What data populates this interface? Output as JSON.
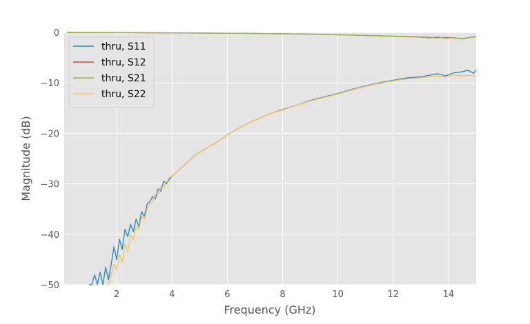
{
  "chart_data": {
    "type": "line",
    "title": "",
    "xlabel": "Frequency (GHz)",
    "ylabel": "Magnitude (dB)",
    "xlim": [
      0.1,
      15.0
    ],
    "ylim": [
      -50,
      0
    ],
    "xticks": [
      2,
      4,
      6,
      8,
      10,
      12,
      14
    ],
    "yticks": [
      0,
      -10,
      -20,
      -30,
      -40,
      -50
    ],
    "xtick_labels": [
      "2",
      "4",
      "6",
      "8",
      "10",
      "12",
      "14"
    ],
    "ytick_labels": [
      "0",
      "−10",
      "−20",
      "−30",
      "−40",
      "−50"
    ],
    "grid": true,
    "legend_position": "upper-left",
    "background": "#e5e5e5",
    "series": [
      {
        "name": "thru, S11",
        "color": "#348abd",
        "x": [
          1.0,
          1.1,
          1.2,
          1.3,
          1.4,
          1.5,
          1.6,
          1.7,
          1.8,
          1.9,
          2.0,
          2.1,
          2.2,
          2.3,
          2.4,
          2.5,
          2.6,
          2.7,
          2.8,
          2.9,
          3.0,
          3.1,
          3.2,
          3.3,
          3.4,
          3.5,
          3.6,
          3.7,
          3.8,
          3.9,
          4.0,
          4.2,
          4.4,
          4.6,
          4.8,
          5.0,
          5.3,
          5.6,
          6.0,
          6.4,
          6.8,
          7.2,
          7.6,
          8.0,
          8.5,
          9.0,
          9.5,
          10.0,
          10.5,
          11.0,
          11.5,
          12.0,
          12.5,
          13.0,
          13.3,
          13.6,
          13.9,
          14.2,
          14.5,
          14.7,
          14.9,
          15.0
        ],
        "values": [
          -50.0,
          -51.0,
          -48.0,
          -52.0,
          -47.5,
          -50.0,
          -46.5,
          -49.0,
          -46.0,
          -42.5,
          -45.0,
          -41.0,
          -43.0,
          -39.0,
          -40.5,
          -38.0,
          -39.5,
          -37.0,
          -38.5,
          -35.5,
          -36.5,
          -34.0,
          -33.5,
          -32.5,
          -33.0,
          -31.0,
          -31.5,
          -29.5,
          -30.0,
          -29.0,
          -28.5,
          -27.5,
          -26.5,
          -25.5,
          -24.5,
          -23.8,
          -22.8,
          -21.8,
          -20.3,
          -19.0,
          -17.9,
          -16.9,
          -16.0,
          -15.3,
          -14.4,
          -13.5,
          -12.8,
          -12.1,
          -11.3,
          -10.6,
          -10.0,
          -9.5,
          -9.0,
          -8.8,
          -8.5,
          -8.2,
          -8.6,
          -8.0,
          -7.8,
          -7.5,
          -8.1,
          -7.5
        ]
      },
      {
        "name": "thru, S12",
        "color": "#e24a33",
        "x": [
          0.2,
          1,
          2,
          3,
          4,
          5,
          6,
          7,
          8,
          9,
          10,
          11,
          12,
          13,
          13.5,
          14,
          14.5,
          15
        ],
        "values": [
          0.0,
          -0.01,
          -0.03,
          -0.06,
          -0.09,
          -0.12,
          -0.16,
          -0.21,
          -0.27,
          -0.36,
          -0.46,
          -0.6,
          -0.75,
          -0.9,
          -1.05,
          -1.0,
          -1.25,
          -0.8
        ]
      },
      {
        "name": "thru, S21",
        "color": "#8eba42",
        "x": [
          0.2,
          1,
          2,
          3,
          4,
          5,
          6,
          7,
          8,
          9,
          10,
          11,
          12,
          13,
          13.3,
          13.6,
          13.9,
          14.2,
          14.5,
          14.8,
          15
        ],
        "values": [
          0.0,
          -0.01,
          -0.03,
          -0.06,
          -0.09,
          -0.12,
          -0.16,
          -0.21,
          -0.27,
          -0.36,
          -0.47,
          -0.6,
          -0.76,
          -0.95,
          -1.1,
          -0.9,
          -1.15,
          -1.05,
          -1.3,
          -1.0,
          -0.9
        ]
      },
      {
        "name": "thru, S22",
        "color": "#fbc15e",
        "x": [
          1.7,
          1.8,
          1.9,
          2.0,
          2.1,
          2.2,
          2.3,
          2.4,
          2.5,
          2.6,
          2.7,
          2.8,
          2.9,
          3.0,
          3.1,
          3.2,
          3.3,
          3.4,
          3.5,
          3.6,
          3.7,
          3.8,
          3.9,
          4.0,
          4.2,
          4.4,
          4.6,
          4.8,
          5.0,
          5.3,
          5.6,
          6.0,
          6.4,
          6.8,
          7.2,
          7.6,
          8.0,
          8.5,
          9.0,
          9.5,
          10.0,
          10.5,
          11.0,
          11.5,
          12.0,
          12.5,
          13.0,
          13.3,
          13.6,
          13.9,
          14.2,
          14.5,
          14.8,
          15.0
        ],
        "values": [
          -50.0,
          -48.0,
          -46.0,
          -47.0,
          -44.0,
          -45.5,
          -42.0,
          -43.5,
          -40.0,
          -41.0,
          -38.5,
          -39.0,
          -36.5,
          -37.0,
          -35.0,
          -34.0,
          -33.5,
          -32.0,
          -32.0,
          -30.5,
          -30.8,
          -29.5,
          -29.5,
          -28.5,
          -27.5,
          -26.5,
          -25.5,
          -24.5,
          -23.8,
          -22.8,
          -21.8,
          -20.3,
          -19.0,
          -17.9,
          -16.9,
          -16.0,
          -15.4,
          -14.4,
          -13.6,
          -12.9,
          -12.2,
          -11.4,
          -10.7,
          -10.1,
          -9.6,
          -9.2,
          -9.0,
          -8.8,
          -8.6,
          -8.9,
          -8.4,
          -8.6,
          -8.5,
          -8.7
        ]
      }
    ]
  }
}
